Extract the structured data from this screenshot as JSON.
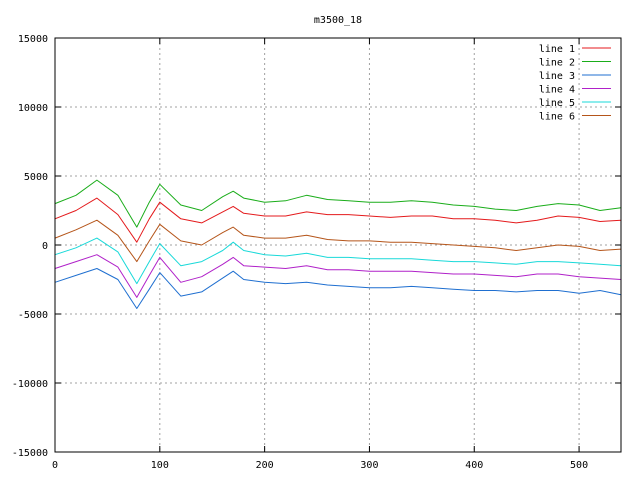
{
  "chart_data": {
    "type": "line",
    "title": "m3500_18",
    "xlabel": "",
    "ylabel": "",
    "xlim": [
      0,
      540
    ],
    "ylim": [
      -15000,
      15000
    ],
    "xticks": [
      0,
      100,
      200,
      300,
      400,
      500
    ],
    "yticks": [
      -15000,
      -10000,
      -5000,
      0,
      5000,
      10000,
      15000
    ],
    "grid": true,
    "legend_position": "top-right",
    "x": [
      0,
      20,
      40,
      60,
      78,
      90,
      100,
      120,
      140,
      160,
      170,
      180,
      200,
      220,
      240,
      260,
      280,
      300,
      320,
      340,
      360,
      380,
      400,
      420,
      440,
      460,
      480,
      500,
      520,
      540
    ],
    "series": [
      {
        "name": "line 1",
        "color": "#e41a1c",
        "values": [
          1900,
          2500,
          3400,
          2200,
          200,
          1900,
          3100,
          1900,
          1600,
          2400,
          2800,
          2300,
          2100,
          2100,
          2400,
          2200,
          2200,
          2100,
          2000,
          2100,
          2100,
          1900,
          1900,
          1800,
          1600,
          1800,
          2100,
          2000,
          1700,
          1800
        ]
      },
      {
        "name": "line 2",
        "color": "#1aad1a",
        "values": [
          3000,
          3600,
          4700,
          3600,
          1300,
          3100,
          4400,
          2900,
          2500,
          3500,
          3900,
          3400,
          3100,
          3200,
          3600,
          3300,
          3200,
          3100,
          3100,
          3200,
          3100,
          2900,
          2800,
          2600,
          2500,
          2800,
          3000,
          2900,
          2500,
          2700
        ]
      },
      {
        "name": "line 3",
        "color": "#1f6fd0",
        "values": [
          -2700,
          -2200,
          -1700,
          -2500,
          -4600,
          -3200,
          -2000,
          -3700,
          -3400,
          -2400,
          -1900,
          -2500,
          -2700,
          -2800,
          -2700,
          -2900,
          -3000,
          -3100,
          -3100,
          -3000,
          -3100,
          -3200,
          -3300,
          -3300,
          -3400,
          -3300,
          -3300,
          -3500,
          -3300,
          -3600
        ]
      },
      {
        "name": "line 4",
        "color": "#b021c9",
        "values": [
          -1700,
          -1200,
          -700,
          -1600,
          -3800,
          -2200,
          -900,
          -2700,
          -2300,
          -1400,
          -900,
          -1500,
          -1600,
          -1700,
          -1500,
          -1800,
          -1800,
          -1900,
          -1900,
          -1900,
          -2000,
          -2100,
          -2100,
          -2200,
          -2300,
          -2100,
          -2100,
          -2300,
          -2400,
          -2500
        ]
      },
      {
        "name": "line 5",
        "color": "#19d9d9",
        "values": [
          -700,
          -200,
          500,
          -500,
          -2800,
          -1200,
          100,
          -1500,
          -1200,
          -400,
          200,
          -400,
          -700,
          -800,
          -600,
          -900,
          -900,
          -1000,
          -1000,
          -1000,
          -1100,
          -1200,
          -1200,
          -1300,
          -1400,
          -1200,
          -1200,
          -1300,
          -1400,
          -1500
        ]
      },
      {
        "name": "line 6",
        "color": "#b5551a",
        "values": [
          500,
          1100,
          1800,
          700,
          -1200,
          300,
          1500,
          300,
          0,
          900,
          1300,
          700,
          500,
          500,
          700,
          400,
          300,
          300,
          200,
          200,
          100,
          0,
          -100,
          -200,
          -400,
          -200,
          0,
          -100,
          -400,
          -300
        ]
      }
    ]
  }
}
